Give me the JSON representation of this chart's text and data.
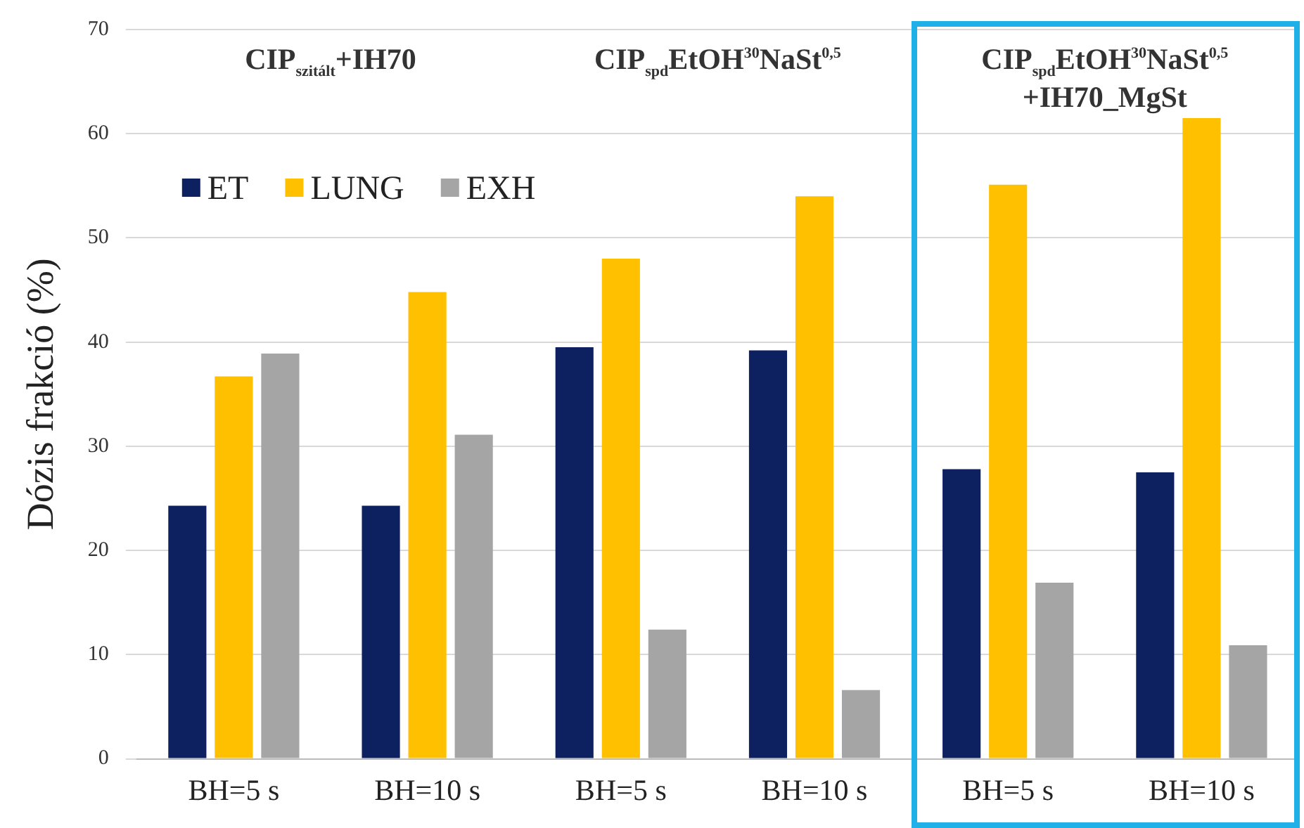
{
  "chart_data": {
    "type": "bar",
    "ylabel": "Dózis frakció (%)",
    "categories": [
      "BH=5 s",
      "BH=10 s",
      "BH=5 s",
      "BH=10 s",
      "BH=5 s",
      "BH=10 s"
    ],
    "series": [
      {
        "name": "ET",
        "color": "#0d2160",
        "values": [
          24.3,
          24.3,
          39.5,
          39.2,
          27.8,
          27.5
        ]
      },
      {
        "name": "LUNG",
        "color": "#ffc000",
        "values": [
          36.7,
          44.8,
          48,
          54,
          55.1,
          61.5
        ]
      },
      {
        "name": "EXH",
        "color": "#a5a5a5",
        "values": [
          38.9,
          31.1,
          12.4,
          6.6,
          16.9,
          10.9
        ]
      }
    ],
    "annotations": [
      "CIP$_{szitált}$+IH70",
      "CIP$_{spd}$EtOH$^{30}$NaSt$^{0,5}$",
      "CIP$_{spd}$EtOH$^{30}$NaSt$^{0,5}$ +IH70_MgSt"
    ],
    "ylim": [
      0,
      70
    ],
    "yticks": [
      0,
      10,
      20,
      30,
      40,
      50,
      60,
      70
    ],
    "grid": "y",
    "legend": "top left"
  }
}
